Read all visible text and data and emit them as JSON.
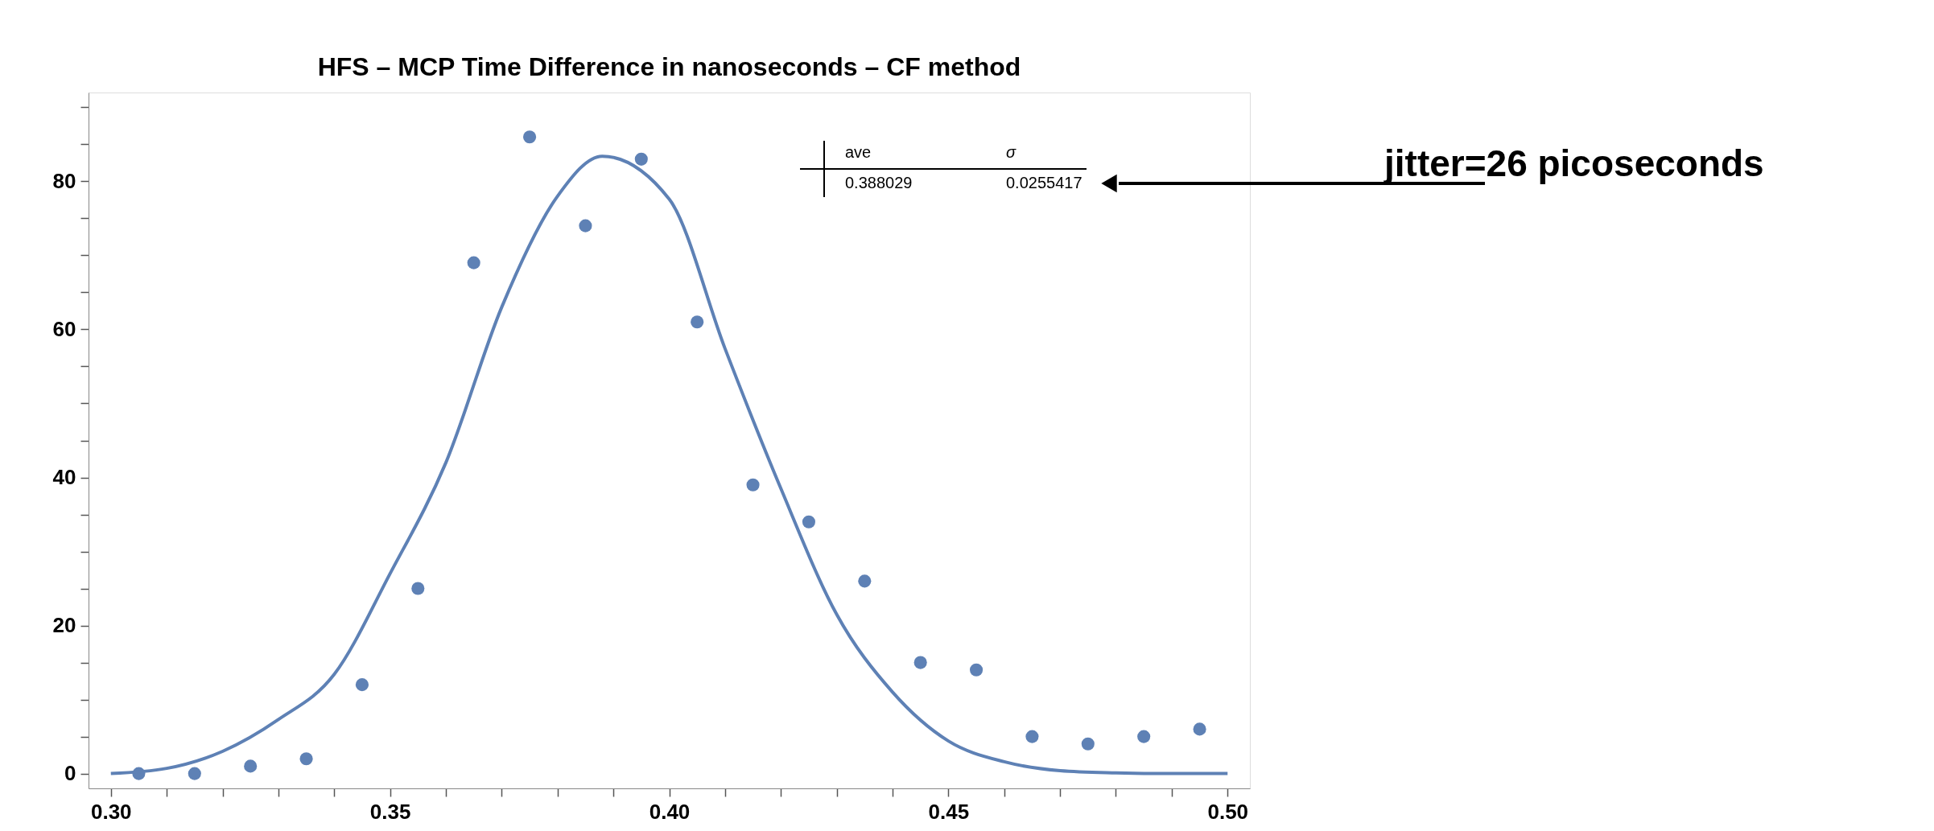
{
  "chart_data": {
    "type": "scatter",
    "title": "HFS – MCP Time Difference in nanoseconds – CF method",
    "x": [
      0.305,
      0.315,
      0.325,
      0.335,
      0.345,
      0.355,
      0.365,
      0.375,
      0.385,
      0.395,
      0.405,
      0.415,
      0.425,
      0.435,
      0.445,
      0.455,
      0.465,
      0.475,
      0.485,
      0.495
    ],
    "series": [
      {
        "marker": "circle",
        "color": "#5e81b5",
        "values": [
          0,
          0,
          1,
          2,
          12,
          25,
          69,
          86,
          74,
          83,
          61,
          39,
          34,
          26,
          15,
          14,
          5,
          4,
          5,
          6
        ]
      },
      {
        "type": "line",
        "line_style": "solid",
        "color": "#5e81b5",
        "x": [
          0.3,
          0.31,
          0.32,
          0.33,
          0.34,
          0.35,
          0.36,
          0.37,
          0.38,
          0.388,
          0.4,
          0.41,
          0.42,
          0.43,
          0.44,
          0.45,
          0.46,
          0.47,
          0.48,
          0.49,
          0.5
        ],
        "values": [
          0,
          0.7,
          3,
          7.3,
          13.4,
          27,
          42,
          63,
          78,
          83.4,
          77.6,
          57.4,
          38.5,
          21.5,
          11,
          4.4,
          1.6,
          0.4,
          0.1,
          0,
          0
        ]
      }
    ],
    "xlim": [
      0.296,
      0.504
    ],
    "ylim": [
      -2,
      92
    ],
    "xticks": [
      {
        "value": 0.3,
        "label": "0.30"
      },
      {
        "value": 0.31,
        "label": null
      },
      {
        "value": 0.32,
        "label": null
      },
      {
        "value": 0.33,
        "label": null
      },
      {
        "value": 0.34,
        "label": null
      },
      {
        "value": 0.35,
        "label": "0.35"
      },
      {
        "value": 0.36,
        "label": null
      },
      {
        "value": 0.37,
        "label": null
      },
      {
        "value": 0.38,
        "label": null
      },
      {
        "value": 0.39,
        "label": null
      },
      {
        "value": 0.4,
        "label": "0.40"
      },
      {
        "value": 0.41,
        "label": null
      },
      {
        "value": 0.42,
        "label": null
      },
      {
        "value": 0.43,
        "label": null
      },
      {
        "value": 0.44,
        "label": null
      },
      {
        "value": 0.45,
        "label": "0.45"
      },
      {
        "value": 0.46,
        "label": null
      },
      {
        "value": 0.47,
        "label": null
      },
      {
        "value": 0.48,
        "label": null
      },
      {
        "value": 0.49,
        "label": null
      },
      {
        "value": 0.5,
        "label": "0.50"
      }
    ],
    "yticks": [
      0,
      {
        "value": 5,
        "label": null
      },
      {
        "value": 10,
        "label": null
      },
      {
        "value": 15,
        "label": null
      },
      20,
      {
        "value": 25,
        "label": null
      },
      {
        "value": 30,
        "label": null
      },
      {
        "value": 35,
        "label": null
      },
      40,
      {
        "value": 45,
        "label": null
      },
      {
        "value": 50,
        "label": null
      },
      {
        "value": 55,
        "label": null
      },
      60,
      {
        "value": 65,
        "label": null
      },
      {
        "value": 70,
        "label": null
      },
      {
        "value": 75,
        "label": null
      },
      80,
      {
        "value": 85,
        "label": null
      },
      {
        "value": 90,
        "label": null
      }
    ],
    "grid": false,
    "annotations": [
      "ave",
      "σ",
      "0.388029",
      "0.0255417",
      "jitter=26 picoseconds"
    ]
  }
}
